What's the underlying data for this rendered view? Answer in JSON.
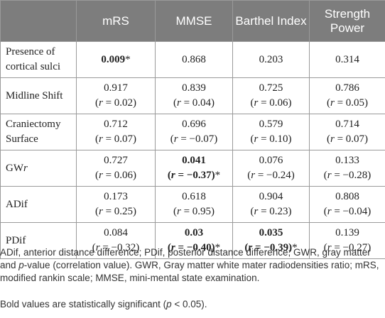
{
  "header": [
    "",
    "mRS",
    "MMSE",
    "Barthel Index",
    "Strength Power"
  ],
  "rows": [
    {
      "label": "Presence of cortical sulci",
      "cells": [
        {
          "p": "0.009*",
          "r": "",
          "bold": true
        },
        {
          "p": "0.868",
          "r": "",
          "bold": false
        },
        {
          "p": "0.203",
          "r": "",
          "bold": false
        },
        {
          "p": "0.314",
          "r": "",
          "bold": false
        }
      ]
    },
    {
      "label": "Midline Shift",
      "cells": [
        {
          "p": "0.917",
          "r": "0.02",
          "bold": false
        },
        {
          "p": "0.839",
          "r": "0.04",
          "bold": false
        },
        {
          "p": "0.725",
          "r": "0.06",
          "bold": false
        },
        {
          "p": "0.786",
          "r": "0.05",
          "bold": false
        }
      ]
    },
    {
      "label": "Craniectomy Surface",
      "cells": [
        {
          "p": "0.712",
          "r": "0.07",
          "bold": false
        },
        {
          "p": "0.696",
          "r": "−0.07",
          "bold": false
        },
        {
          "p": "0.579",
          "r": "0.10",
          "bold": false
        },
        {
          "p": "0.714",
          "r": "0.07",
          "bold": false
        }
      ]
    },
    {
      "label": "GWr",
      "cells": [
        {
          "p": "0.727",
          "r": "0.06",
          "bold": false
        },
        {
          "p": "0.041",
          "r": "−0.37",
          "bold": true,
          "star_after_r": true
        },
        {
          "p": "0.076",
          "r": "−0.24",
          "bold": false
        },
        {
          "p": "0.133",
          "r": "−0.28",
          "bold": false
        }
      ]
    },
    {
      "label": "ADif",
      "cells": [
        {
          "p": "0.173",
          "r": "0.25",
          "bold": false
        },
        {
          "p": "0.618",
          "r": "0.95",
          "bold": false
        },
        {
          "p": "0.904",
          "r": "0.23",
          "bold": false
        },
        {
          "p": "0.808",
          "r": "−0.04",
          "bold": false
        }
      ]
    },
    {
      "label": "PDif",
      "cells": [
        {
          "p": "0.084",
          "r": "−0.32",
          "bold": false
        },
        {
          "p": "0.03",
          "r": "−0.40",
          "bold": true,
          "star_after_r": true
        },
        {
          "p": "0.035",
          "r": "−0.39",
          "bold": true,
          "star_after_r": true
        },
        {
          "p": "0.139",
          "r": "−0.27",
          "bold": false
        }
      ]
    }
  ],
  "footnotes": {
    "abbreviations": "ADif, anterior distance difference; PDif, posterior distance difference; GWR, gray matter and p-value (correlation value). GWR, Gray matter white mater radiodensities ratio; mRS, modified rankin scale; MMSE, mini-mental state examination.",
    "bold_note": "Bold values are statistically significant (p < 0.05)."
  }
}
